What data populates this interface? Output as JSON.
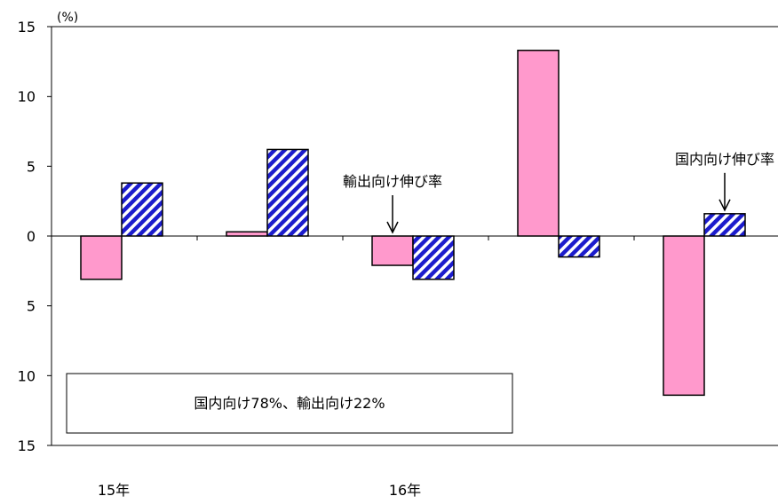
{
  "chart_data": {
    "type": "bar",
    "unit_label": "(%)",
    "ylim": [
      -15,
      15
    ],
    "y_ticks": [
      {
        "value": 15,
        "label": "15"
      },
      {
        "value": 10,
        "label": "10"
      },
      {
        "value": 5,
        "label": "5"
      },
      {
        "value": 0,
        "label": "0"
      },
      {
        "value": -5,
        "label": "5"
      },
      {
        "value": -10,
        "label": "10"
      },
      {
        "value": -15,
        "label": "15"
      }
    ],
    "x_labels": [
      {
        "group_index": 0,
        "label": "15年"
      },
      {
        "group_index": 2,
        "label": "16年"
      }
    ],
    "series": [
      {
        "name": "輸出向け伸び率",
        "color": "#ff99cc",
        "pattern": "solid",
        "values": [
          -3.1,
          0.3,
          -2.1,
          13.3,
          -11.4
        ]
      },
      {
        "name": "国内向け伸び率",
        "color": "#1c1ccc",
        "pattern": "diagonal-stripes",
        "values": [
          3.8,
          6.2,
          -3.1,
          -1.5,
          1.6
        ]
      }
    ],
    "annotations": [
      {
        "text": "輸出向け伸び率",
        "group_index": 2,
        "series_index": 0
      },
      {
        "text": "国内向け伸び率",
        "group_index": 4,
        "series_index": 1
      }
    ],
    "note": "国内向け78%、輸出向け22%",
    "grid": false
  }
}
